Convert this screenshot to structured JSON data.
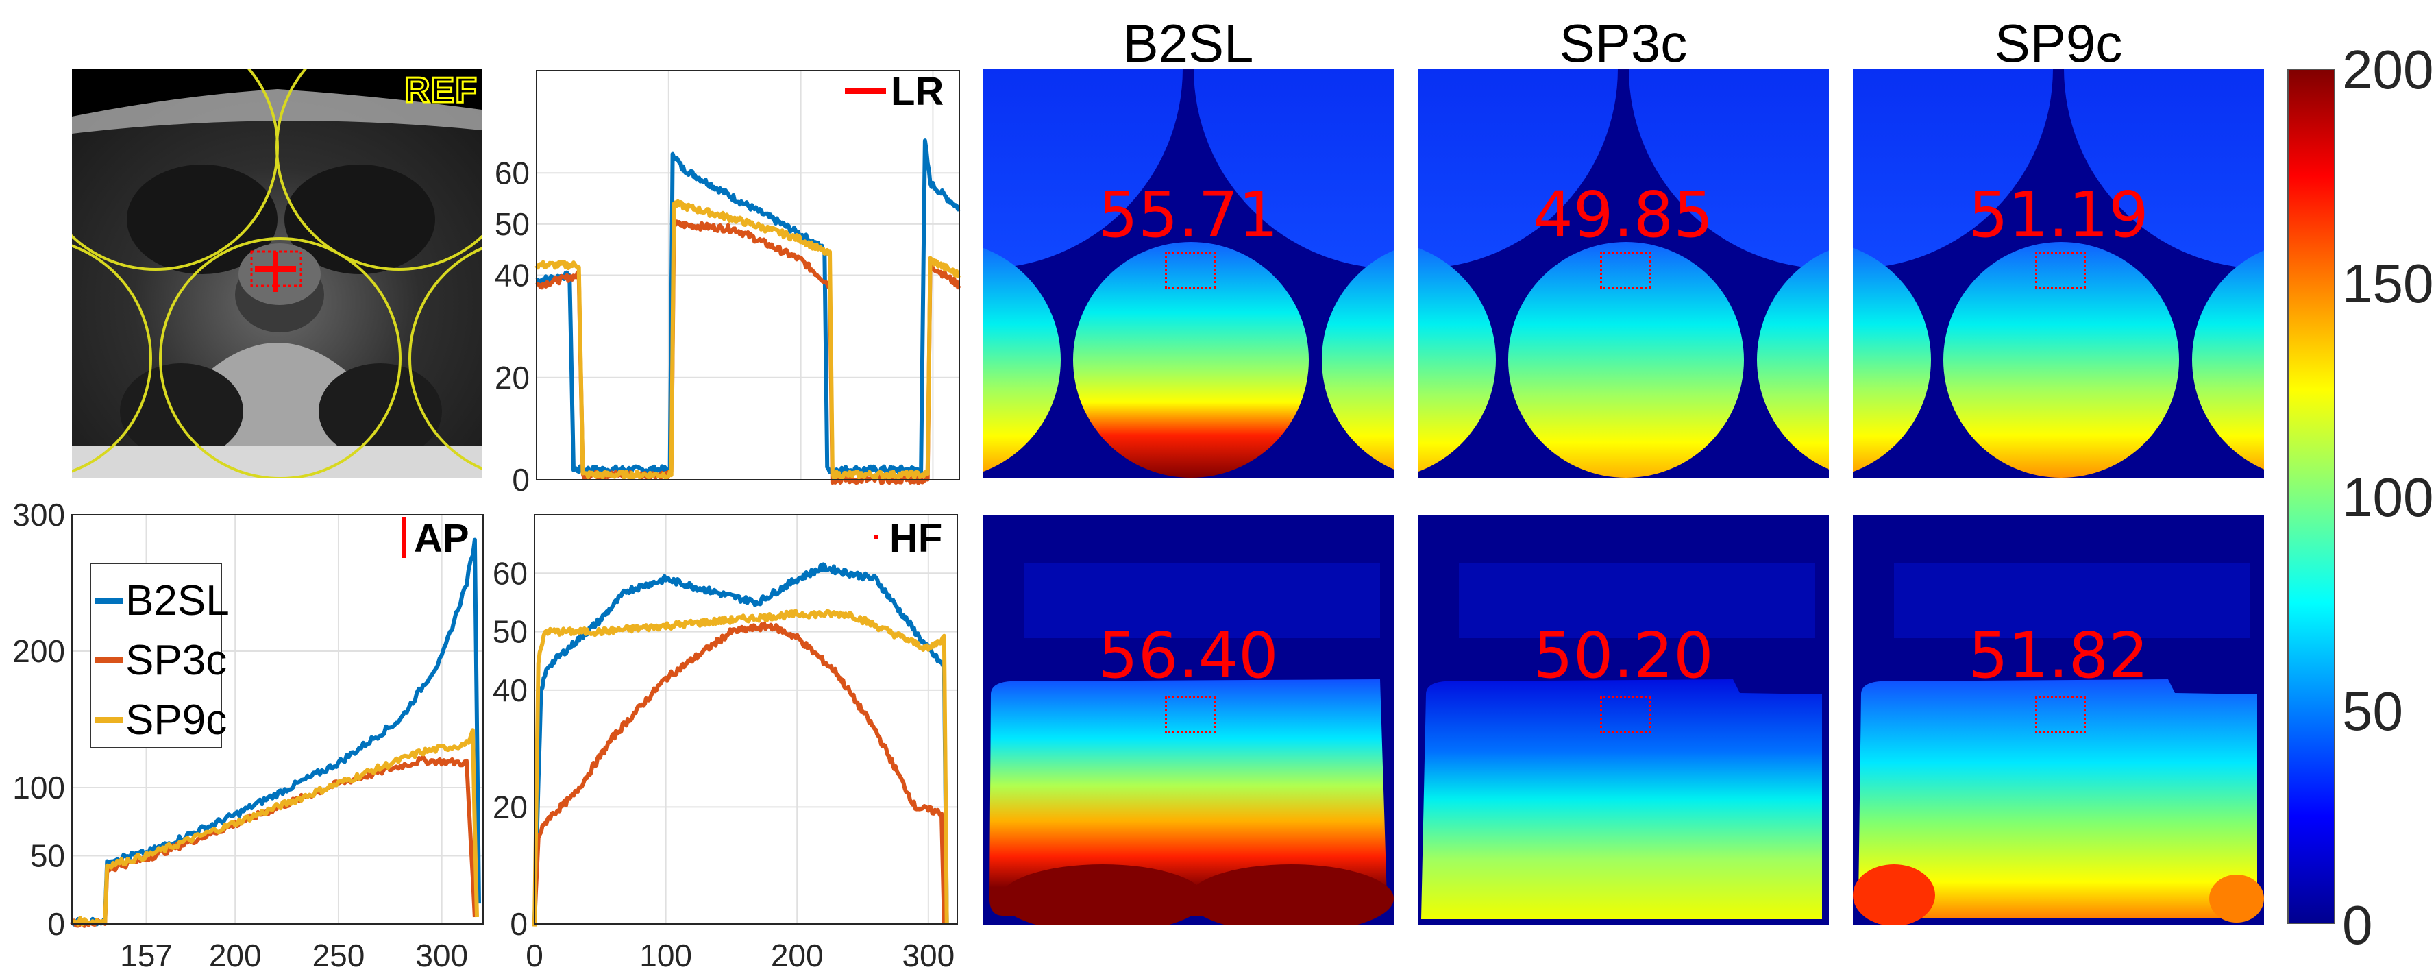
{
  "reference_image": {
    "label": "REF"
  },
  "panel_titles": [
    "B2SL",
    "SP3c",
    "SP9c"
  ],
  "series_colors": {
    "B2SL": "#0072BD",
    "SP3c": "#D95319",
    "SP9c": "#EDB120"
  },
  "legend": [
    "B2SL",
    "SP3c",
    "SP9c"
  ],
  "heatmap_values": {
    "top": [
      "55.71",
      "49.85",
      "51.19"
    ],
    "bottom": [
      "56.40",
      "50.20",
      "51.82"
    ]
  },
  "colorbar": {
    "min": 0,
    "max": 200,
    "ticks": [
      "0",
      "50",
      "100",
      "150",
      "200"
    ],
    "colormap": "jet"
  },
  "chart_data": [
    {
      "type": "line",
      "id": "lr",
      "title": "LR",
      "marker": "horizontal-line",
      "xlim": [
        0,
        320
      ],
      "ylim": [
        0,
        80
      ],
      "grid": true,
      "xticks": [
        100,
        200,
        300
      ],
      "xtick_labels": [
        "",
        "",
        ""
      ],
      "yticks": [
        0,
        20,
        40,
        50,
        60
      ],
      "ytick_labels": [
        "0",
        "20",
        "40",
        "50",
        "60"
      ],
      "series": [
        {
          "name": "B2SL",
          "points": [
            [
              0,
              39
            ],
            [
              25,
              40
            ],
            [
              28,
              2
            ],
            [
              101,
              2
            ],
            [
              103,
              64
            ],
            [
              110,
              61
            ],
            [
              150,
              55
            ],
            [
              200,
              48
            ],
            [
              218,
              45
            ],
            [
              220,
              2
            ],
            [
              291,
              2
            ],
            [
              294,
              66
            ],
            [
              298,
              58
            ],
            [
              320,
              53
            ]
          ]
        },
        {
          "name": "SP3c",
          "points": [
            [
              0,
              38
            ],
            [
              32,
              40
            ],
            [
              35,
              1
            ],
            [
              102,
              1
            ],
            [
              104,
              50
            ],
            [
              150,
              49
            ],
            [
              200,
              43
            ],
            [
              222,
              38
            ],
            [
              224,
              0
            ],
            [
              296,
              0
            ],
            [
              298,
              42
            ],
            [
              320,
              38
            ]
          ]
        },
        {
          "name": "SP9c",
          "points": [
            [
              0,
              42
            ],
            [
              32,
              42
            ],
            [
              35,
              1
            ],
            [
              102,
              1
            ],
            [
              104,
              54
            ],
            [
              150,
              51
            ],
            [
              200,
              47
            ],
            [
              222,
              44
            ],
            [
              224,
              1
            ],
            [
              296,
              1
            ],
            [
              298,
              43
            ],
            [
              320,
              40
            ]
          ]
        }
      ]
    },
    {
      "type": "line",
      "id": "ap",
      "title": "AP",
      "marker": "vertical-line",
      "xlim": [
        121,
        320
      ],
      "ylim": [
        0,
        300
      ],
      "grid": true,
      "xticks": [
        157,
        200,
        250,
        300
      ],
      "xtick_labels": [
        "157",
        "200",
        "250",
        "300"
      ],
      "yticks": [
        0,
        50,
        100,
        200,
        300
      ],
      "ytick_labels": [
        "0",
        "50",
        "100",
        "200",
        "300"
      ],
      "legend_position": "upper-left",
      "series": [
        {
          "name": "B2SL",
          "points": [
            [
              121,
              2
            ],
            [
              137,
              2
            ],
            [
              138,
              47
            ],
            [
              157,
              52
            ],
            [
              200,
              80
            ],
            [
              250,
              118
            ],
            [
              280,
              150
            ],
            [
              300,
              195
            ],
            [
              312,
              250
            ],
            [
              316,
              280
            ],
            [
              318,
              15
            ]
          ]
        },
        {
          "name": "SP3c",
          "points": [
            [
              121,
              1
            ],
            [
              137,
              1
            ],
            [
              138,
              40
            ],
            [
              157,
              48
            ],
            [
              200,
              73
            ],
            [
              250,
              103
            ],
            [
              290,
              120
            ],
            [
              312,
              118
            ],
            [
              316,
              5
            ]
          ]
        },
        {
          "name": "SP9c",
          "points": [
            [
              121,
              2
            ],
            [
              137,
              2
            ],
            [
              138,
              43
            ],
            [
              157,
              50
            ],
            [
              200,
              74
            ],
            [
              250,
              103
            ],
            [
              290,
              126
            ],
            [
              312,
              132
            ],
            [
              315,
              140
            ],
            [
              317,
              5
            ]
          ]
        }
      ]
    },
    {
      "type": "line",
      "id": "hf",
      "title": "HF",
      "marker": "dot",
      "xlim": [
        0,
        322
      ],
      "ylim": [
        0,
        70
      ],
      "grid": true,
      "xticks": [
        0,
        100,
        200,
        300
      ],
      "xtick_labels": [
        "0",
        "100",
        "200",
        "300"
      ],
      "yticks": [
        0,
        20,
        40,
        50,
        60
      ],
      "ytick_labels": [
        "0",
        "20",
        "40",
        "50",
        "60"
      ],
      "series": [
        {
          "name": "B2SL",
          "points": [
            [
              0,
              0
            ],
            [
              5,
              40
            ],
            [
              10,
              44
            ],
            [
              20,
              46
            ],
            [
              50,
              52
            ],
            [
              70,
              57
            ],
            [
              100,
              59
            ],
            [
              150,
              56
            ],
            [
              170,
              55
            ],
            [
              200,
              59
            ],
            [
              220,
              61
            ],
            [
              260,
              59
            ],
            [
              280,
              53
            ],
            [
              300,
              47
            ],
            [
              312,
              44
            ],
            [
              314,
              0
            ]
          ]
        },
        {
          "name": "SP3c",
          "points": [
            [
              0,
              0
            ],
            [
              3,
              15
            ],
            [
              10,
              18
            ],
            [
              30,
              22
            ],
            [
              60,
              32
            ],
            [
              100,
              42
            ],
            [
              150,
              50
            ],
            [
              180,
              51
            ],
            [
              200,
              49
            ],
            [
              230,
              43
            ],
            [
              260,
              33
            ],
            [
              290,
              20
            ],
            [
              310,
              19
            ],
            [
              312,
              0
            ]
          ]
        },
        {
          "name": "SP9c",
          "points": [
            [
              0,
              0
            ],
            [
              3,
              45
            ],
            [
              8,
              50
            ],
            [
              50,
              50
            ],
            [
              100,
              51
            ],
            [
              150,
              52
            ],
            [
              200,
              53
            ],
            [
              240,
              53
            ],
            [
              270,
              50
            ],
            [
              300,
              47
            ],
            [
              312,
              49
            ],
            [
              314,
              0
            ]
          ]
        }
      ]
    }
  ]
}
